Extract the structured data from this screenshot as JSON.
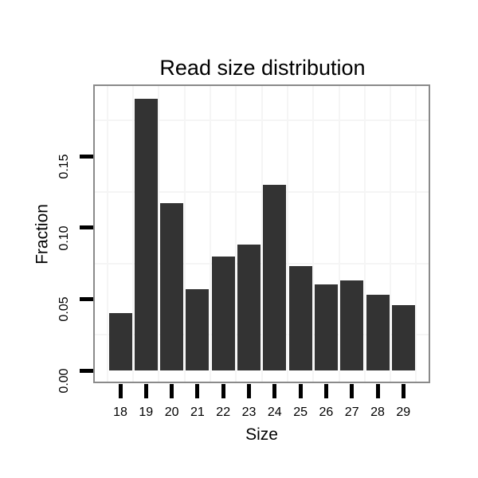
{
  "chart_data": {
    "type": "bar",
    "title": "Read size distribution",
    "xlabel": "Size",
    "ylabel": "Fraction",
    "categories": [
      "18",
      "19",
      "20",
      "21",
      "22",
      "23",
      "24",
      "25",
      "26",
      "27",
      "28",
      "29"
    ],
    "values": [
      0.04,
      0.19,
      0.117,
      0.057,
      0.08,
      0.088,
      0.13,
      0.073,
      0.06,
      0.063,
      0.053,
      0.046
    ],
    "y_ticks": [
      0.0,
      0.05,
      0.1,
      0.15
    ],
    "y_tick_labels": [
      "0.00",
      "0.05",
      "0.10",
      "0.15"
    ],
    "y_minor_gridlines": [
      0.025,
      0.075,
      0.125,
      0.175
    ],
    "ylim": [
      -0.0095,
      0.199
    ],
    "grid": "minor gridlines only (light gray); major gridlines white/invisible",
    "legend": "none",
    "colors": {
      "bar": "#333333",
      "gridline": "#f5f5f5",
      "panel_border": "#8a8a8a",
      "axis_tick": "#000000",
      "text": "#000000",
      "background": "#ffffff"
    }
  }
}
